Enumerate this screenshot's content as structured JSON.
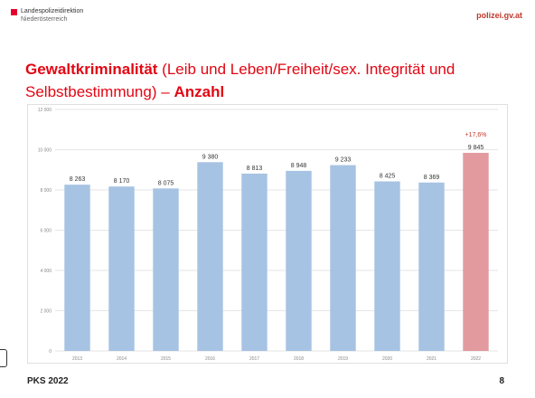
{
  "header": {
    "org_line1": "Landespolizeidirektion",
    "org_line2": "Niederösterreich",
    "site": "polizei.gv.at"
  },
  "slide": {
    "title_main": "Gewaltkriminalität",
    "title_paren": "(Leib und Leben/Freiheit/sex. Integrität und Selbstbestimmung)",
    "title_dash": "–",
    "title_end": "Anzahl"
  },
  "footer": {
    "left": "PKS 2022",
    "page": "8"
  },
  "colors": {
    "bar": "#a7c3e3",
    "highlight": "#e39a9f",
    "annotation": "#c0392b",
    "grid": "#e6e6e6"
  },
  "chart_data": {
    "type": "bar",
    "categories": [
      "2013",
      "2014",
      "2015",
      "2016",
      "2017",
      "2018",
      "2019",
      "2020",
      "2021",
      "2022"
    ],
    "values": [
      8263,
      8170,
      8075,
      9380,
      8813,
      8948,
      9233,
      8425,
      8369,
      9845
    ],
    "value_labels": [
      "8 263",
      "8 170",
      "8 075",
      "9 380",
      "8 813",
      "8 948",
      "9 233",
      "8 425",
      "8 369",
      "9 845"
    ],
    "ylim": [
      0,
      12000
    ],
    "yticks": [
      0,
      2000,
      4000,
      6000,
      8000,
      10000,
      12000
    ],
    "ytick_labels": [
      "0",
      "2 000",
      "4 000",
      "6 000",
      "8 000",
      "10 000",
      "12 000"
    ],
    "grid": true,
    "highlight_index": 9,
    "annotation": {
      "index": 9,
      "text": "+17,6%"
    }
  }
}
